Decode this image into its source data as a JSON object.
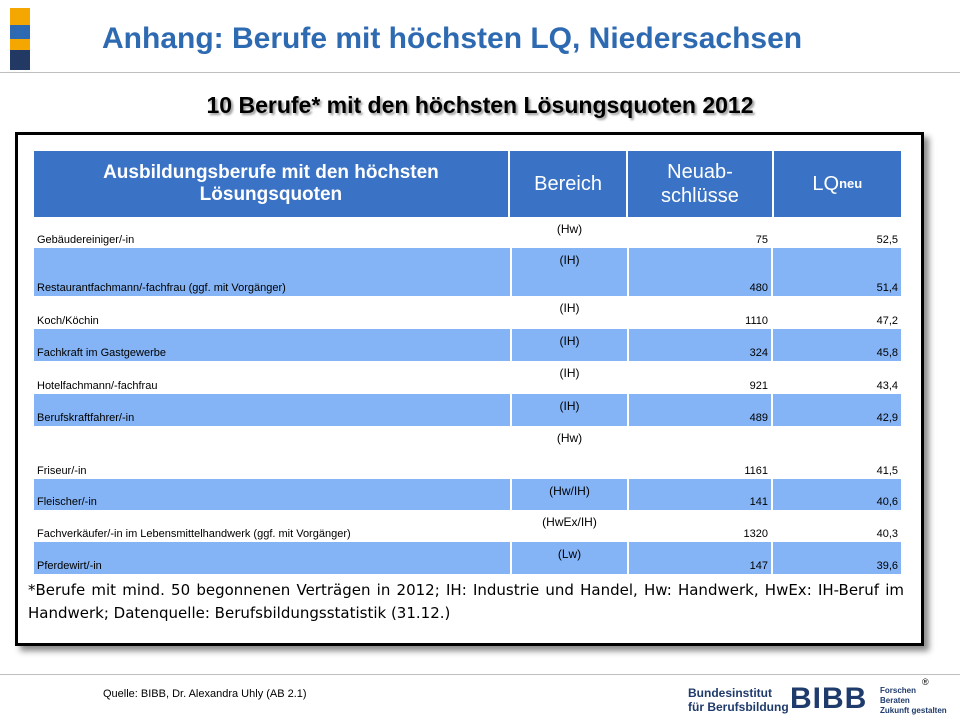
{
  "colors": {
    "title": "#2e6ab1",
    "table_header": "#3a73c5",
    "table_row_alt": "#84b4f5",
    "accent": [
      "#f4a700",
      "#2e6ab1",
      "#f4a700",
      "#223a63"
    ]
  },
  "slide": {
    "title": "Anhang: Berufe mit höchsten LQ, Niedersachsen",
    "subtitle": "10 Berufe* mit den höchsten Lösungsquoten 2012"
  },
  "table": {
    "headers": {
      "occupation": "Ausbildungsberufe mit den höchsten Lösungsquoten",
      "sector": "Bereich",
      "contracts": "Neuab-schlüsse",
      "lq": "LQ",
      "lq_sub": "neu"
    },
    "rows": [
      {
        "occupation": "Gebäudereiniger/-in",
        "sector": "(Hw)",
        "contracts": "75",
        "lq": "52,5"
      },
      {
        "occupation": "Restaurantfachmann/-fachfrau (ggf. mit Vorgänger)",
        "sector": "(IH)",
        "contracts": "480",
        "lq": "51,4"
      },
      {
        "occupation": "Koch/Köchin",
        "sector": "(IH)",
        "contracts": "1110",
        "lq": "47,2"
      },
      {
        "occupation": "Fachkraft im Gastgewerbe",
        "sector": "(IH)",
        "contracts": "324",
        "lq": "45,8"
      },
      {
        "occupation": "Hotelfachmann/-fachfrau",
        "sector": "(IH)",
        "contracts": "921",
        "lq": "43,4"
      },
      {
        "occupation": "Berufskraftfahrer/-in",
        "sector": "(IH)",
        "contracts": "489",
        "lq": "42,9"
      },
      {
        "occupation": "Friseur/-in",
        "sector": "(Hw)",
        "contracts": "1161",
        "lq": "41,5"
      },
      {
        "occupation": "Fleischer/-in",
        "sector": "(Hw/IH)",
        "contracts": "141",
        "lq": "40,6"
      },
      {
        "occupation": "Fachverkäufer/-in im Lebensmittelhandwerk (ggf. mit Vorgänger)",
        "sector": "(HwEx/IH)",
        "contracts": "1320",
        "lq": "40,3"
      },
      {
        "occupation": "Pferdewirt/-in",
        "sector": "(Lw)",
        "contracts": "147",
        "lq": "39,6"
      }
    ]
  },
  "footnote": "*Berufe mit mind. 50 begonnenen Verträgen in 2012; IH: Industrie und Handel, Hw: Handwerk, HwEx: IH-Beruf im Handwerk; Datenquelle: Berufsbildungsstatistik (31.12.)",
  "footer": {
    "source": "Quelle: BIBB, Dr. Alexandra Uhly (AB 2.1)",
    "registered": "®",
    "logo": {
      "name_line1": "Bundesinstitut",
      "name_line2": "für Berufsbildung",
      "mark": "BIBB",
      "tag_line1": "Forschen",
      "tag_line2": "Beraten",
      "tag_line3": "Zukunft gestalten"
    }
  }
}
